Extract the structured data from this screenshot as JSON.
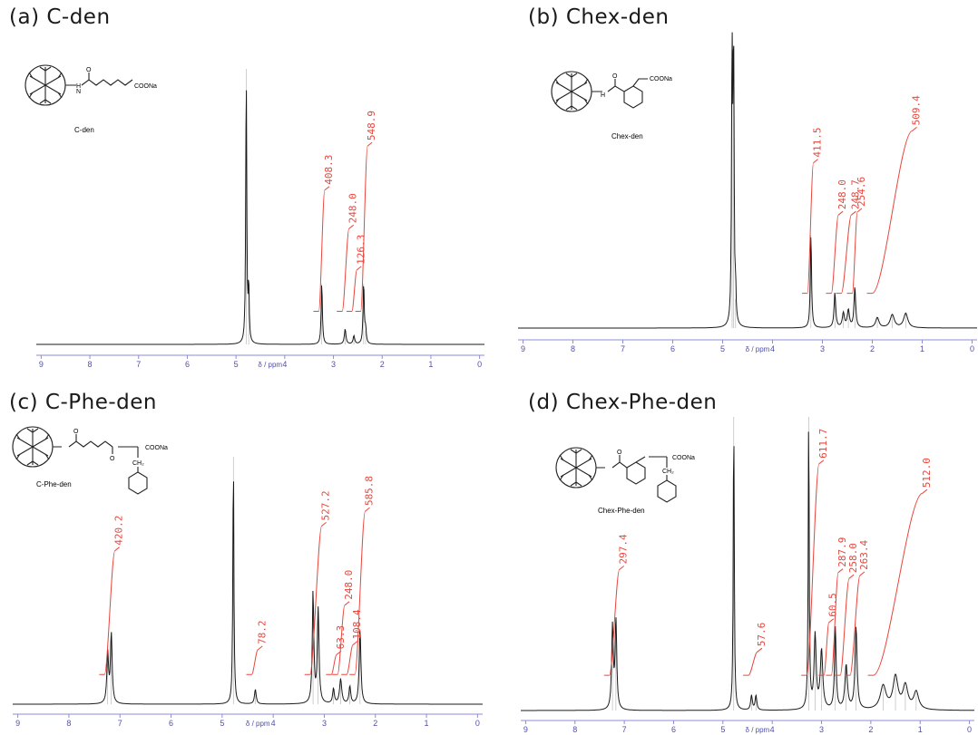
{
  "chart_data": [
    {
      "type": "line",
      "title": "(a) C-den",
      "xlabel": "δ / ppm",
      "xlim": [
        9.1,
        -0.1
      ],
      "xticks": [
        "9",
        "8",
        "7",
        "6",
        "5",
        "4",
        "3",
        "2",
        "1",
        "0"
      ],
      "structure_label": "C-den",
      "structure_groups": [
        "COONa"
      ],
      "peaks": [
        {
          "ppm": 4.79,
          "height": 1.0,
          "width": 0.012
        },
        {
          "ppm": 4.74,
          "height": 0.2,
          "width": 0.012
        },
        {
          "ppm": 3.24,
          "height": 0.22,
          "width": 0.015
        },
        {
          "ppm": 2.76,
          "height": 0.055,
          "width": 0.02
        },
        {
          "ppm": 2.58,
          "height": 0.03,
          "width": 0.02
        },
        {
          "ppm": 2.38,
          "height": 0.22,
          "width": 0.015
        },
        {
          "ppm": 2.34,
          "height": 0.05,
          "width": 0.015
        }
      ],
      "integrals": [
        {
          "from": 3.3,
          "to": 3.18,
          "rise": 0.44,
          "label": "408.3"
        },
        {
          "from": 2.82,
          "to": 2.68,
          "rise": 0.3,
          "label": "248.0"
        },
        {
          "from": 2.62,
          "to": 2.52,
          "rise": 0.15,
          "label": "126.3"
        },
        {
          "from": 2.44,
          "to": 2.3,
          "rise": 0.6,
          "label": "548.9"
        }
      ]
    },
    {
      "type": "line",
      "title": "(b) Chex-den",
      "xlabel": "δ / ppm",
      "xlim": [
        9.1,
        -0.1
      ],
      "xticks": [
        "9",
        "8",
        "7",
        "6",
        "5",
        "4",
        "3",
        "2",
        "1",
        "0"
      ],
      "structure_label": "Chex-den",
      "structure_groups": [
        "COONa"
      ],
      "peaks": [
        {
          "ppm": 4.81,
          "height": 1.0,
          "width": 0.012
        },
        {
          "ppm": 4.78,
          "height": 0.95,
          "width": 0.012
        },
        {
          "ppm": 4.74,
          "height": 0.1,
          "width": 0.01
        },
        {
          "ppm": 3.23,
          "height": 0.32,
          "width": 0.015
        },
        {
          "ppm": 2.75,
          "height": 0.12,
          "width": 0.02
        },
        {
          "ppm": 2.58,
          "height": 0.05,
          "width": 0.025
        },
        {
          "ppm": 2.48,
          "height": 0.06,
          "width": 0.025
        },
        {
          "ppm": 2.35,
          "height": 0.14,
          "width": 0.02
        },
        {
          "ppm": 1.9,
          "height": 0.035,
          "width": 0.04
        },
        {
          "ppm": 1.6,
          "height": 0.045,
          "width": 0.05
        },
        {
          "ppm": 1.33,
          "height": 0.05,
          "width": 0.05
        }
      ],
      "integrals": [
        {
          "from": 3.3,
          "to": 3.18,
          "rise": 0.45,
          "label": "411.5"
        },
        {
          "from": 2.82,
          "to": 2.68,
          "rise": 0.27,
          "label": "248.0"
        },
        {
          "from": 2.62,
          "to": 2.42,
          "rise": 0.27,
          "label": "248.7"
        },
        {
          "from": 2.4,
          "to": 2.3,
          "rise": 0.28,
          "label": "254.6"
        },
        {
          "from": 2.0,
          "to": 1.2,
          "rise": 0.56,
          "label": "509.4"
        }
      ]
    },
    {
      "type": "line",
      "title": "(c) C-Phe-den",
      "xlabel": "δ / ppm",
      "xlim": [
        9.1,
        -0.1
      ],
      "xticks": [
        "9",
        "8",
        "7",
        "6",
        "5",
        "4",
        "3",
        "2",
        "1",
        "0"
      ],
      "structure_label": "C-Phe-den",
      "structure_groups": [
        "COONa",
        "CH₂"
      ],
      "peaks": [
        {
          "ppm": 7.24,
          "height": 0.2,
          "width": 0.02
        },
        {
          "ppm": 7.17,
          "height": 0.28,
          "width": 0.02
        },
        {
          "ppm": 4.78,
          "height": 1.0,
          "width": 0.012
        },
        {
          "ppm": 4.35,
          "height": 0.06,
          "width": 0.02
        },
        {
          "ppm": 3.22,
          "height": 0.45,
          "width": 0.018
        },
        {
          "ppm": 3.12,
          "height": 0.38,
          "width": 0.02
        },
        {
          "ppm": 2.82,
          "height": 0.06,
          "width": 0.02
        },
        {
          "ppm": 2.68,
          "height": 0.1,
          "width": 0.025
        },
        {
          "ppm": 2.5,
          "height": 0.07,
          "width": 0.02
        },
        {
          "ppm": 2.3,
          "height": 0.3,
          "width": 0.02
        }
      ],
      "integrals": [
        {
          "from": 7.3,
          "to": 7.1,
          "rise": 0.5,
          "label": "420.2"
        },
        {
          "from": 4.42,
          "to": 4.3,
          "rise": 0.1,
          "label": "78.2"
        },
        {
          "from": 3.28,
          "to": 3.05,
          "rise": 0.6,
          "label": "527.2"
        },
        {
          "from": 2.86,
          "to": 2.76,
          "rise": 0.08,
          "label": "63.3"
        },
        {
          "from": 2.74,
          "to": 2.6,
          "rise": 0.28,
          "label": "248.0"
        },
        {
          "from": 2.56,
          "to": 2.44,
          "rise": 0.12,
          "label": "108.4"
        },
        {
          "from": 2.4,
          "to": 2.2,
          "rise": 0.66,
          "label": "585.8"
        }
      ]
    },
    {
      "type": "line",
      "title": "(d) Chex-Phe-den",
      "xlabel": "δ / ppm",
      "xlim": [
        9.1,
        -0.1
      ],
      "xticks": [
        "9",
        "8",
        "7",
        "6",
        "5",
        "4",
        "3",
        "2",
        "1",
        "0"
      ],
      "structure_label": "Chex-Phe-den",
      "structure_groups": [
        "COONa",
        "CH₂"
      ],
      "peaks": [
        {
          "ppm": 7.24,
          "height": 0.28,
          "width": 0.02
        },
        {
          "ppm": 7.17,
          "height": 0.3,
          "width": 0.02
        },
        {
          "ppm": 4.78,
          "height": 1.0,
          "width": 0.012
        },
        {
          "ppm": 4.42,
          "height": 0.05,
          "width": 0.02
        },
        {
          "ppm": 4.33,
          "height": 0.05,
          "width": 0.02
        },
        {
          "ppm": 3.26,
          "height": 1.0,
          "width": 0.012
        },
        {
          "ppm": 3.13,
          "height": 0.25,
          "width": 0.025
        },
        {
          "ppm": 3.0,
          "height": 0.2,
          "width": 0.03
        },
        {
          "ppm": 2.72,
          "height": 0.28,
          "width": 0.02
        },
        {
          "ppm": 2.5,
          "height": 0.15,
          "width": 0.03
        },
        {
          "ppm": 2.3,
          "height": 0.28,
          "width": 0.025
        },
        {
          "ppm": 1.75,
          "height": 0.08,
          "width": 0.07
        },
        {
          "ppm": 1.5,
          "height": 0.11,
          "width": 0.06
        },
        {
          "ppm": 1.3,
          "height": 0.08,
          "width": 0.06
        },
        {
          "ppm": 1.08,
          "height": 0.06,
          "width": 0.06
        }
      ],
      "integrals": [
        {
          "from": 7.3,
          "to": 7.1,
          "rise": 0.36,
          "label": "297.4"
        },
        {
          "from": 4.48,
          "to": 4.3,
          "rise": 0.08,
          "label": "57.6"
        },
        {
          "from": 3.3,
          "to": 3.05,
          "rise": 0.72,
          "label": "611.7"
        },
        {
          "from": 2.95,
          "to": 2.85,
          "rise": 0.18,
          "label": "60.5"
        },
        {
          "from": 2.8,
          "to": 2.66,
          "rise": 0.35,
          "label": "287.9"
        },
        {
          "from": 2.62,
          "to": 2.44,
          "rise": 0.33,
          "label": "258.0"
        },
        {
          "from": 2.42,
          "to": 2.22,
          "rise": 0.34,
          "label": "263.4"
        },
        {
          "from": 1.95,
          "to": 0.95,
          "rise": 0.62,
          "label": "512.0"
        }
      ]
    }
  ],
  "colors": {
    "spectrum": "#1a1a1a",
    "integral": "#e8463c",
    "axis": "#8c8cd8",
    "tick_label": "#5050a8"
  }
}
